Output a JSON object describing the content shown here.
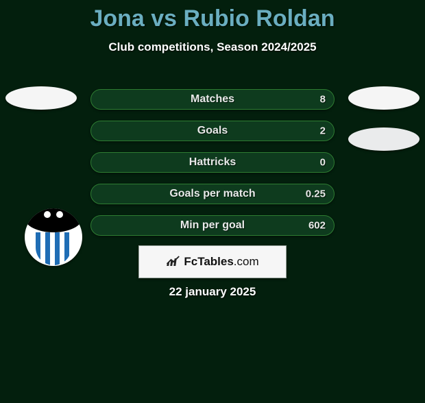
{
  "background_color": "#031f0d",
  "title": {
    "text": "Jona vs Rubio Roldan",
    "color": "#6aaec0",
    "fontsize": 34
  },
  "subtitle": {
    "text": "Club competitions, Season 2024/2025",
    "color": "#ffffff",
    "fontsize": 17
  },
  "left_team": {
    "chip_color": "#f5f5f5",
    "badge_primary": "#000000",
    "badge_stripe_blue": "#1f6db5",
    "badge_bg": "#ffffff"
  },
  "right_team": {
    "chip_color_1": "#f5f5f5",
    "chip_color_2": "#eaebec"
  },
  "bars": {
    "label_color": "#e7e9e8",
    "value_color": "#e8e9e8",
    "label_fontsize": 16,
    "value_fontsize": 15,
    "bar_bg": "#0e3b1e",
    "bar_border": "#2e7d32",
    "items": [
      {
        "label": "Matches",
        "value": "8"
      },
      {
        "label": "Goals",
        "value": "2"
      },
      {
        "label": "Hattricks",
        "value": "0"
      },
      {
        "label": "Goals per match",
        "value": "0.25"
      },
      {
        "label": "Min per goal",
        "value": "602"
      }
    ]
  },
  "logo": {
    "brand": "FcTables",
    "domain": ".com",
    "box_bg": "#f6f6f6",
    "box_border": "#9aa69e"
  },
  "date": {
    "text": "22 january 2025",
    "color": "#ffffff",
    "fontsize": 17
  }
}
